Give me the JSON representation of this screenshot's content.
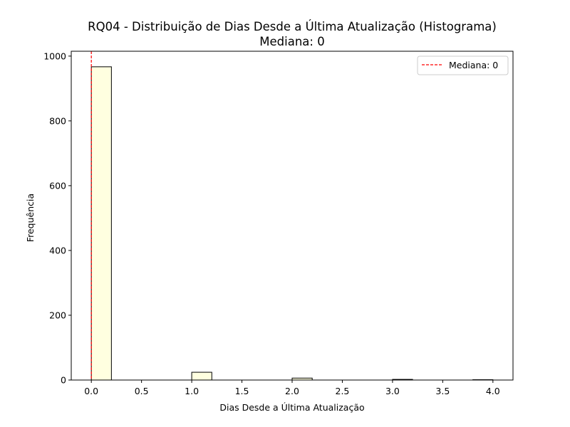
{
  "chart_data": {
    "type": "bar",
    "title": "RQ04 - Distribuição de Dias Desde a Última Atualização (Histograma)",
    "subtitle": "Mediana: 0",
    "xlabel": "Dias Desde a Última Atualização",
    "ylabel": "Frequência",
    "xlim": [
      -0.2,
      4.2
    ],
    "ylim": [
      0,
      1015
    ],
    "x_ticks": [
      0.0,
      0.5,
      1.0,
      1.5,
      2.0,
      2.5,
      3.0,
      3.5,
      4.0
    ],
    "x_tick_labels": [
      "0.0",
      "0.5",
      "1.0",
      "1.5",
      "2.0",
      "2.5",
      "3.0",
      "3.5",
      "4.0"
    ],
    "y_ticks": [
      0,
      200,
      400,
      600,
      800,
      1000
    ],
    "y_tick_labels": [
      "0",
      "200",
      "400",
      "600",
      "800",
      "1000"
    ],
    "bin_width": 0.2,
    "bins": [
      {
        "x0": 0.0,
        "x1": 0.2,
        "count": 967
      },
      {
        "x0": 0.2,
        "x1": 0.4,
        "count": 0
      },
      {
        "x0": 0.4,
        "x1": 0.6,
        "count": 0
      },
      {
        "x0": 0.6,
        "x1": 0.8,
        "count": 0
      },
      {
        "x0": 0.8,
        "x1": 1.0,
        "count": 0
      },
      {
        "x0": 1.0,
        "x1": 1.2,
        "count": 24
      },
      {
        "x0": 1.2,
        "x1": 1.4,
        "count": 0
      },
      {
        "x0": 1.4,
        "x1": 1.6,
        "count": 0
      },
      {
        "x0": 1.6,
        "x1": 1.8,
        "count": 0
      },
      {
        "x0": 1.8,
        "x1": 2.0,
        "count": 0
      },
      {
        "x0": 2.0,
        "x1": 2.2,
        "count": 6
      },
      {
        "x0": 2.2,
        "x1": 2.4,
        "count": 0
      },
      {
        "x0": 2.4,
        "x1": 2.6,
        "count": 0
      },
      {
        "x0": 2.6,
        "x1": 2.8,
        "count": 0
      },
      {
        "x0": 2.8,
        "x1": 3.0,
        "count": 0
      },
      {
        "x0": 3.0,
        "x1": 3.2,
        "count": 2
      },
      {
        "x0": 3.2,
        "x1": 3.4,
        "count": 0
      },
      {
        "x0": 3.4,
        "x1": 3.6,
        "count": 0
      },
      {
        "x0": 3.6,
        "x1": 3.8,
        "count": 0
      },
      {
        "x0": 3.8,
        "x1": 4.0,
        "count": 1
      }
    ],
    "median": {
      "value": 0,
      "label": "Mediana: 0"
    },
    "legend": {
      "placement": "top-right",
      "entries": [
        "Mediana: 0"
      ]
    },
    "grid": false,
    "colors": {
      "bar_fill": "#ffffe0",
      "bar_edge": "#000000",
      "median_line": "#ff0000",
      "axes": "#000000"
    }
  }
}
